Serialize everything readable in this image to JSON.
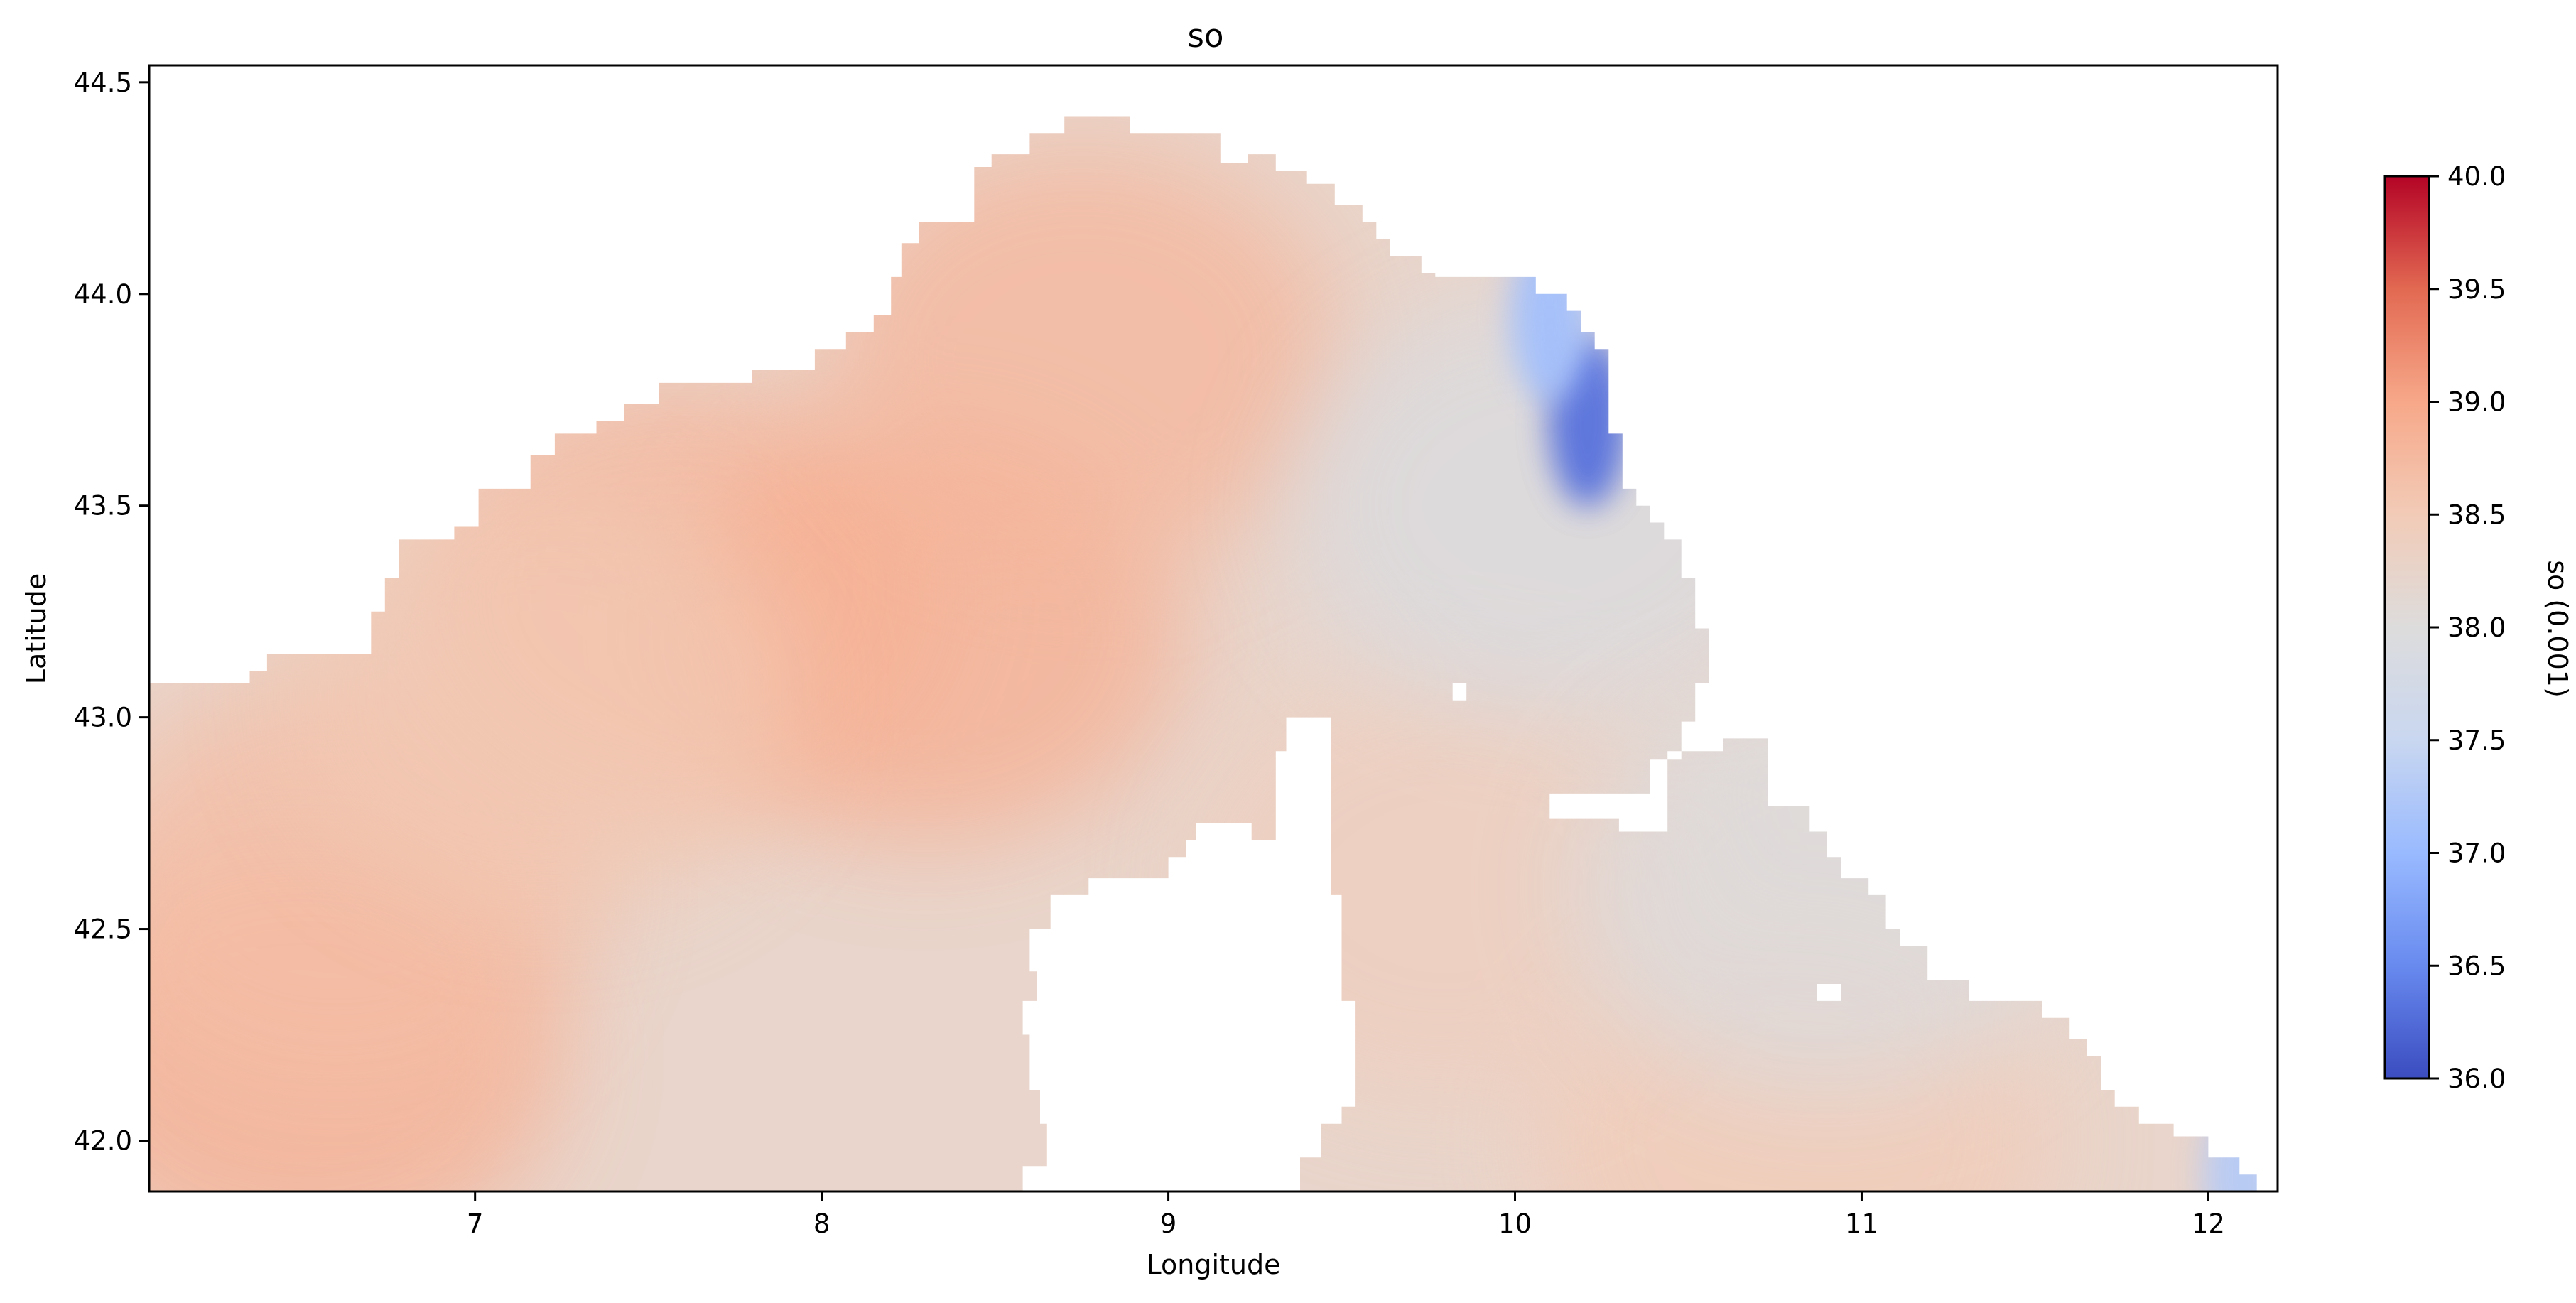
{
  "chart_data": {
    "type": "heatmap",
    "title": "so",
    "xlabel": "Longitude",
    "ylabel": "Latitude",
    "xlim": [
      6.06,
      12.2
    ],
    "ylim": [
      41.88,
      44.54
    ],
    "xticks": [
      7,
      8,
      9,
      10,
      11,
      12
    ],
    "yticks": [
      42.0,
      42.5,
      43.0,
      43.5,
      44.0,
      44.5
    ],
    "xtick_labels": [
      "7",
      "8",
      "9",
      "10",
      "11",
      "12"
    ],
    "ytick_labels": [
      "42.0",
      "42.5",
      "43.0",
      "43.5",
      "44.0",
      "44.5"
    ],
    "colormap": "coolwarm",
    "colorbar": {
      "label": "so (0.001)",
      "range": [
        36.0,
        40.0
      ],
      "ticks": [
        36.0,
        36.5,
        37.0,
        37.5,
        38.0,
        38.5,
        39.0,
        39.5,
        40.0
      ],
      "tick_labels": [
        "36.0",
        "36.5",
        "37.0",
        "37.5",
        "38.0",
        "38.5",
        "39.0",
        "39.5",
        "40.0"
      ],
      "colors": [
        "#3b4cc0",
        "#688aef",
        "#99baff",
        "#c9d7f0",
        "#dddcdc",
        "#f2cbb7",
        "#f7a889",
        "#e26952",
        "#b40426"
      ]
    },
    "grid": false,
    "sea_boundary_north": [
      [
        6.06,
        43.08
      ],
      [
        6.35,
        43.08
      ],
      [
        6.35,
        43.11
      ],
      [
        6.4,
        43.11
      ],
      [
        6.4,
        43.15
      ],
      [
        6.7,
        43.15
      ],
      [
        6.7,
        43.25
      ],
      [
        6.74,
        43.25
      ],
      [
        6.74,
        43.33
      ],
      [
        6.78,
        43.33
      ],
      [
        6.78,
        43.42
      ],
      [
        6.94,
        43.42
      ],
      [
        6.94,
        43.45
      ],
      [
        7.01,
        43.45
      ],
      [
        7.01,
        43.54
      ],
      [
        7.16,
        43.54
      ],
      [
        7.16,
        43.62
      ],
      [
        7.23,
        43.62
      ],
      [
        7.23,
        43.67
      ],
      [
        7.35,
        43.67
      ],
      [
        7.35,
        43.7
      ],
      [
        7.43,
        43.7
      ],
      [
        7.43,
        43.74
      ],
      [
        7.53,
        43.74
      ],
      [
        7.53,
        43.79
      ],
      [
        7.8,
        43.79
      ],
      [
        7.8,
        43.82
      ],
      [
        7.98,
        43.82
      ],
      [
        7.98,
        43.87
      ],
      [
        8.07,
        43.87
      ],
      [
        8.07,
        43.91
      ],
      [
        8.15,
        43.91
      ],
      [
        8.15,
        43.95
      ],
      [
        8.2,
        43.95
      ],
      [
        8.2,
        44.04
      ],
      [
        8.23,
        44.04
      ],
      [
        8.23,
        44.12
      ],
      [
        8.28,
        44.12
      ],
      [
        8.28,
        44.17
      ],
      [
        8.44,
        44.17
      ],
      [
        8.44,
        44.3
      ],
      [
        8.49,
        44.3
      ],
      [
        8.49,
        44.33
      ],
      [
        8.6,
        44.33
      ],
      [
        8.6,
        44.38
      ],
      [
        8.7,
        44.38
      ],
      [
        8.7,
        44.42
      ],
      [
        8.89,
        44.42
      ],
      [
        8.89,
        44.38
      ],
      [
        9.15,
        44.38
      ],
      [
        9.15,
        44.31
      ],
      [
        9.23,
        44.31
      ],
      [
        9.23,
        44.33
      ],
      [
        9.31,
        44.33
      ],
      [
        9.31,
        44.29
      ],
      [
        9.4,
        44.29
      ],
      [
        9.4,
        44.26
      ],
      [
        9.48,
        44.26
      ],
      [
        9.48,
        44.21
      ],
      [
        9.56,
        44.21
      ],
      [
        9.56,
        44.17
      ],
      [
        9.6,
        44.17
      ],
      [
        9.6,
        44.13
      ],
      [
        9.64,
        44.13
      ],
      [
        9.64,
        44.09
      ],
      [
        9.73,
        44.09
      ],
      [
        9.73,
        44.05
      ],
      [
        9.77,
        44.05
      ],
      [
        9.77,
        44.04
      ],
      [
        9.9,
        44.04
      ],
      [
        9.9,
        44.04
      ],
      [
        10.06,
        44.04
      ],
      [
        10.06,
        44.0
      ],
      [
        10.15,
        44.0
      ],
      [
        10.15,
        43.96
      ],
      [
        10.19,
        43.96
      ],
      [
        10.19,
        43.91
      ],
      [
        10.23,
        43.91
      ],
      [
        10.23,
        43.87
      ],
      [
        10.27,
        43.87
      ],
      [
        10.27,
        43.67
      ],
      [
        10.31,
        43.67
      ],
      [
        10.31,
        43.54
      ],
      [
        10.35,
        43.54
      ],
      [
        10.35,
        43.5
      ],
      [
        10.39,
        43.5
      ],
      [
        10.39,
        43.46
      ],
      [
        10.43,
        43.46
      ],
      [
        10.43,
        43.42
      ],
      [
        10.48,
        43.42
      ],
      [
        10.48,
        43.33
      ],
      [
        10.52,
        43.33
      ],
      [
        10.52,
        43.21
      ],
      [
        10.56,
        43.21
      ],
      [
        10.56,
        43.08
      ],
      [
        10.52,
        43.08
      ],
      [
        10.52,
        42.99
      ],
      [
        10.48,
        42.99
      ],
      [
        10.48,
        42.9
      ],
      [
        10.39,
        42.9
      ],
      [
        10.39,
        42.82
      ],
      [
        10.1,
        42.82
      ],
      [
        10.1,
        42.76
      ],
      [
        10.3,
        42.76
      ],
      [
        10.3,
        42.73
      ],
      [
        10.44,
        42.73
      ],
      [
        10.44,
        42.92
      ],
      [
        10.6,
        42.92
      ],
      [
        10.6,
        42.95
      ],
      [
        10.73,
        42.95
      ],
      [
        10.73,
        42.79
      ],
      [
        10.85,
        42.79
      ],
      [
        10.85,
        42.73
      ],
      [
        10.9,
        42.73
      ],
      [
        10.9,
        42.67
      ],
      [
        10.94,
        42.67
      ],
      [
        10.94,
        42.62
      ],
      [
        11.02,
        42.62
      ],
      [
        11.02,
        42.58
      ],
      [
        11.07,
        42.58
      ],
      [
        11.07,
        42.5
      ],
      [
        11.11,
        42.5
      ],
      [
        11.11,
        42.46
      ],
      [
        11.19,
        42.46
      ],
      [
        11.19,
        42.38
      ],
      [
        11.31,
        42.38
      ],
      [
        11.31,
        42.33
      ],
      [
        11.52,
        42.33
      ],
      [
        11.52,
        42.29
      ],
      [
        11.6,
        42.29
      ],
      [
        11.6,
        42.24
      ],
      [
        11.65,
        42.24
      ],
      [
        11.65,
        42.2
      ],
      [
        11.69,
        42.2
      ],
      [
        11.69,
        42.12
      ],
      [
        11.73,
        42.12
      ],
      [
        11.73,
        42.08
      ],
      [
        11.8,
        42.08
      ],
      [
        11.8,
        42.04
      ],
      [
        11.9,
        42.04
      ],
      [
        11.9,
        42.01
      ],
      [
        12.0,
        42.01
      ],
      [
        12.0,
        41.96
      ],
      [
        12.09,
        41.96
      ],
      [
        12.09,
        41.92
      ],
      [
        12.14,
        41.92
      ],
      [
        12.14,
        41.88
      ]
    ],
    "corsica_outline": [
      [
        8.58,
        41.88
      ],
      [
        8.58,
        41.94
      ],
      [
        8.65,
        41.94
      ],
      [
        8.65,
        42.04
      ],
      [
        8.63,
        42.04
      ],
      [
        8.63,
        42.12
      ],
      [
        8.6,
        42.12
      ],
      [
        8.6,
        42.25
      ],
      [
        8.58,
        42.25
      ],
      [
        8.58,
        42.33
      ],
      [
        8.62,
        42.33
      ],
      [
        8.62,
        42.4
      ],
      [
        8.6,
        42.4
      ],
      [
        8.6,
        42.5
      ],
      [
        8.66,
        42.5
      ],
      [
        8.66,
        42.58
      ],
      [
        8.77,
        42.58
      ],
      [
        8.77,
        42.62
      ],
      [
        9.0,
        42.62
      ],
      [
        9.0,
        42.67
      ],
      [
        9.05,
        42.67
      ],
      [
        9.05,
        42.71
      ],
      [
        9.08,
        42.71
      ],
      [
        9.08,
        42.75
      ],
      [
        9.24,
        42.75
      ],
      [
        9.24,
        42.71
      ],
      [
        9.31,
        42.71
      ],
      [
        9.31,
        42.92
      ],
      [
        9.34,
        42.92
      ],
      [
        9.34,
        43.0
      ],
      [
        9.47,
        43.0
      ],
      [
        9.47,
        42.58
      ],
      [
        9.5,
        42.58
      ],
      [
        9.5,
        42.33
      ],
      [
        9.54,
        42.33
      ],
      [
        9.54,
        42.08
      ],
      [
        9.5,
        42.08
      ],
      [
        9.5,
        42.04
      ],
      [
        9.44,
        42.04
      ],
      [
        9.44,
        41.96
      ],
      [
        9.38,
        41.96
      ],
      [
        9.38,
        41.88
      ]
    ],
    "lakes": [
      [
        [
          9.82,
          43.04
        ],
        [
          9.86,
          43.04
        ],
        [
          9.86,
          43.08
        ],
        [
          9.82,
          43.08
        ]
      ],
      [
        [
          10.87,
          42.33
        ],
        [
          10.94,
          42.33
        ],
        [
          10.94,
          42.37
        ],
        [
          10.87,
          42.37
        ]
      ]
    ],
    "salinity_features": [
      {
        "lon": 6.5,
        "lat": 42.2,
        "value": 38.9
      },
      {
        "lon": 6.6,
        "lat": 42.6,
        "value": 38.7
      },
      {
        "lon": 7.6,
        "lat": 43.3,
        "value": 38.8
      },
      {
        "lon": 8.3,
        "lat": 43.2,
        "value": 38.9
      },
      {
        "lon": 8.75,
        "lat": 43.85,
        "value": 38.8
      },
      {
        "lon": 7.2,
        "lat": 43.05,
        "value": 38.55
      },
      {
        "lon": 10.8,
        "lat": 42.0,
        "value": 38.5
      },
      {
        "lon": 9.8,
        "lat": 42.6,
        "value": 38.4
      },
      {
        "lon": 10.1,
        "lat": 43.5,
        "value": 37.9
      },
      {
        "lon": 10.9,
        "lat": 42.6,
        "value": 37.95
      },
      {
        "lon": 10.21,
        "lat": 43.7,
        "value": 36.3
      },
      {
        "lon": 10.1,
        "lat": 43.95,
        "value": 37.1
      },
      {
        "lon": 12.1,
        "lat": 41.92,
        "value": 37.3
      }
    ]
  }
}
